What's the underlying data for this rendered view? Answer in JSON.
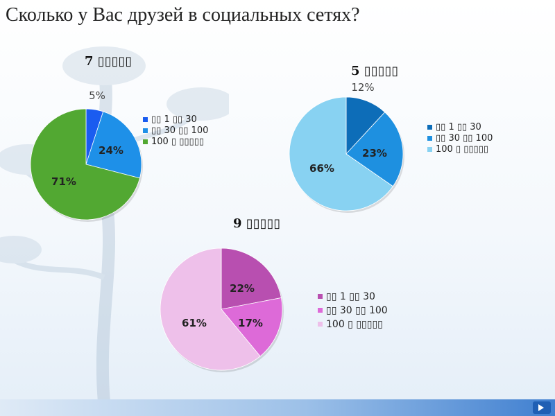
{
  "slide": {
    "title": "Сколько у Вас друзей в социальных сетях?"
  },
  "chart_data": [
    {
      "type": "pie",
      "title": "7 ▯▯▯▯▯",
      "categories": [
        "▯▯ 1 ▯▯ 30",
        "▯▯ 30 ▯▯ 100",
        "100 ▯ ▯▯▯▯▯"
      ],
      "values": [
        5,
        24,
        71
      ],
      "labels": [
        "5%",
        "24%",
        "71%"
      ],
      "colors": [
        "#1a5cf0",
        "#1e90e8",
        "#52a832"
      ],
      "legend_position": "right"
    },
    {
      "type": "pie",
      "title": "5 ▯▯▯▯▯",
      "categories": [
        "▯▯ 1 ▯▯ 30",
        "▯▯ 30 ▯▯ 100",
        "100 ▯ ▯▯▯▯▯"
      ],
      "values": [
        12,
        23,
        66
      ],
      "labels": [
        "12%",
        "23%",
        "66%"
      ],
      "colors": [
        "#0d6db8",
        "#1e90e0",
        "#88d2f2"
      ],
      "legend_position": "right"
    },
    {
      "type": "pie",
      "title": "9 ▯▯▯▯▯",
      "categories": [
        "▯▯ 1 ▯▯ 30",
        "▯▯ 30 ▯▯ 100",
        "100 ▯ ▯▯▯▯▯"
      ],
      "values": [
        22,
        17,
        61
      ],
      "labels": [
        "22%",
        "17%",
        "61%"
      ],
      "colors": [
        "#b84fb0",
        "#dd6ad8",
        "#eec0ea"
      ],
      "legend_position": "right"
    }
  ]
}
